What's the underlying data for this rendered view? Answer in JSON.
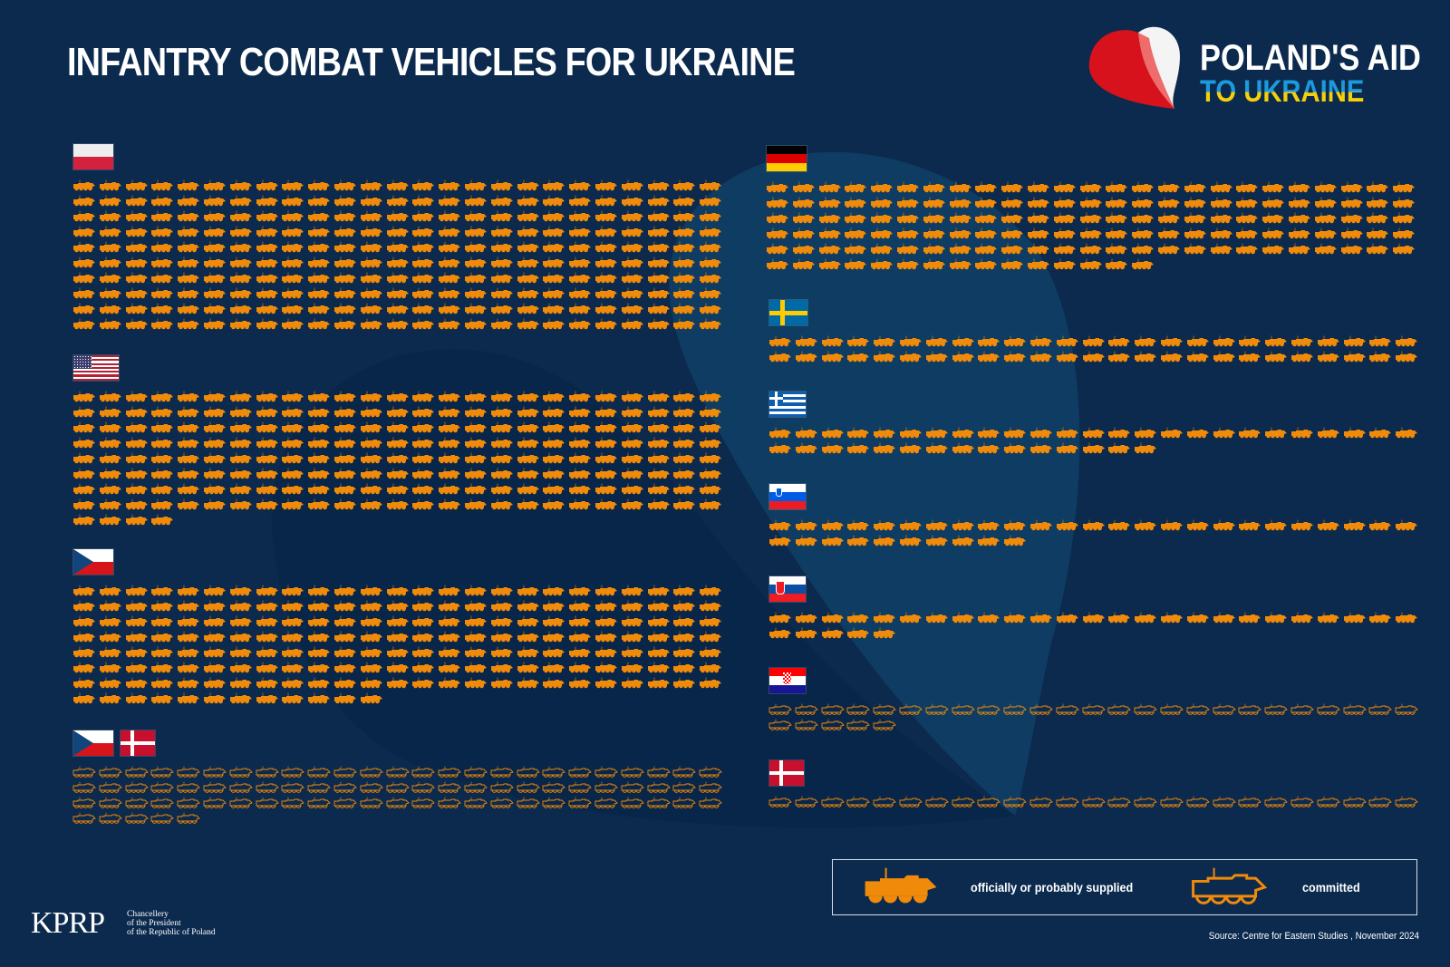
{
  "header": {
    "title": "INFANTRY COMBAT VEHICLES FOR UKRAINE",
    "logo_line1": "POLAND'S AID",
    "logo_line2": "TO UKRAINE"
  },
  "footer": {
    "kprp_logo": "KPRP",
    "kprp_sub": [
      "Chancellery",
      "of the President",
      "of the Republic of Poland"
    ],
    "source": "Source: Centre for Eastern Studies , November 2024"
  },
  "legend": {
    "supplied_label": "officially or probably supplied",
    "committed_label": "committed"
  },
  "colors": {
    "background": "#0b2a4e",
    "vehicle": "#f08a0a",
    "title": "#ffffff",
    "ukraine_blue": "#1b9bde",
    "ukraine_yellow": "#f5d00a"
  },
  "chart_data": {
    "type": "table",
    "title": "INFANTRY COMBAT VEHICLES FOR UKRAINE",
    "unit": "1 icon = 1 vehicle",
    "icons_per_row": 25,
    "legend": [
      "officially or probably supplied",
      "committed"
    ],
    "series": [
      {
        "country": "Poland",
        "flags": [
          "poland"
        ],
        "status": "supplied",
        "value": 250
      },
      {
        "country": "United States",
        "flags": [
          "usa"
        ],
        "status": "supplied",
        "value": 204
      },
      {
        "country": "Czech Republic",
        "flags": [
          "czech"
        ],
        "status": "supplied",
        "value": 187
      },
      {
        "country": "Czech Republic + Denmark",
        "flags": [
          "czech",
          "denmark"
        ],
        "status": "committed",
        "value": 80
      },
      {
        "country": "Germany",
        "flags": [
          "germany"
        ],
        "status": "supplied",
        "value": 140
      },
      {
        "country": "Sweden",
        "flags": [
          "sweden"
        ],
        "status": "supplied",
        "value": 50
      },
      {
        "country": "Greece",
        "flags": [
          "greece"
        ],
        "status": "supplied",
        "value": 40
      },
      {
        "country": "Slovenia",
        "flags": [
          "slovenia"
        ],
        "status": "supplied",
        "value": 35
      },
      {
        "country": "Slovakia",
        "flags": [
          "slovakia"
        ],
        "status": "supplied",
        "value": 30
      },
      {
        "country": "Croatia",
        "flags": [
          "croatia"
        ],
        "status": "committed",
        "value": 30
      },
      {
        "country": "Denmark",
        "flags": [
          "denmark"
        ],
        "status": "committed",
        "value": 25
      }
    ]
  }
}
